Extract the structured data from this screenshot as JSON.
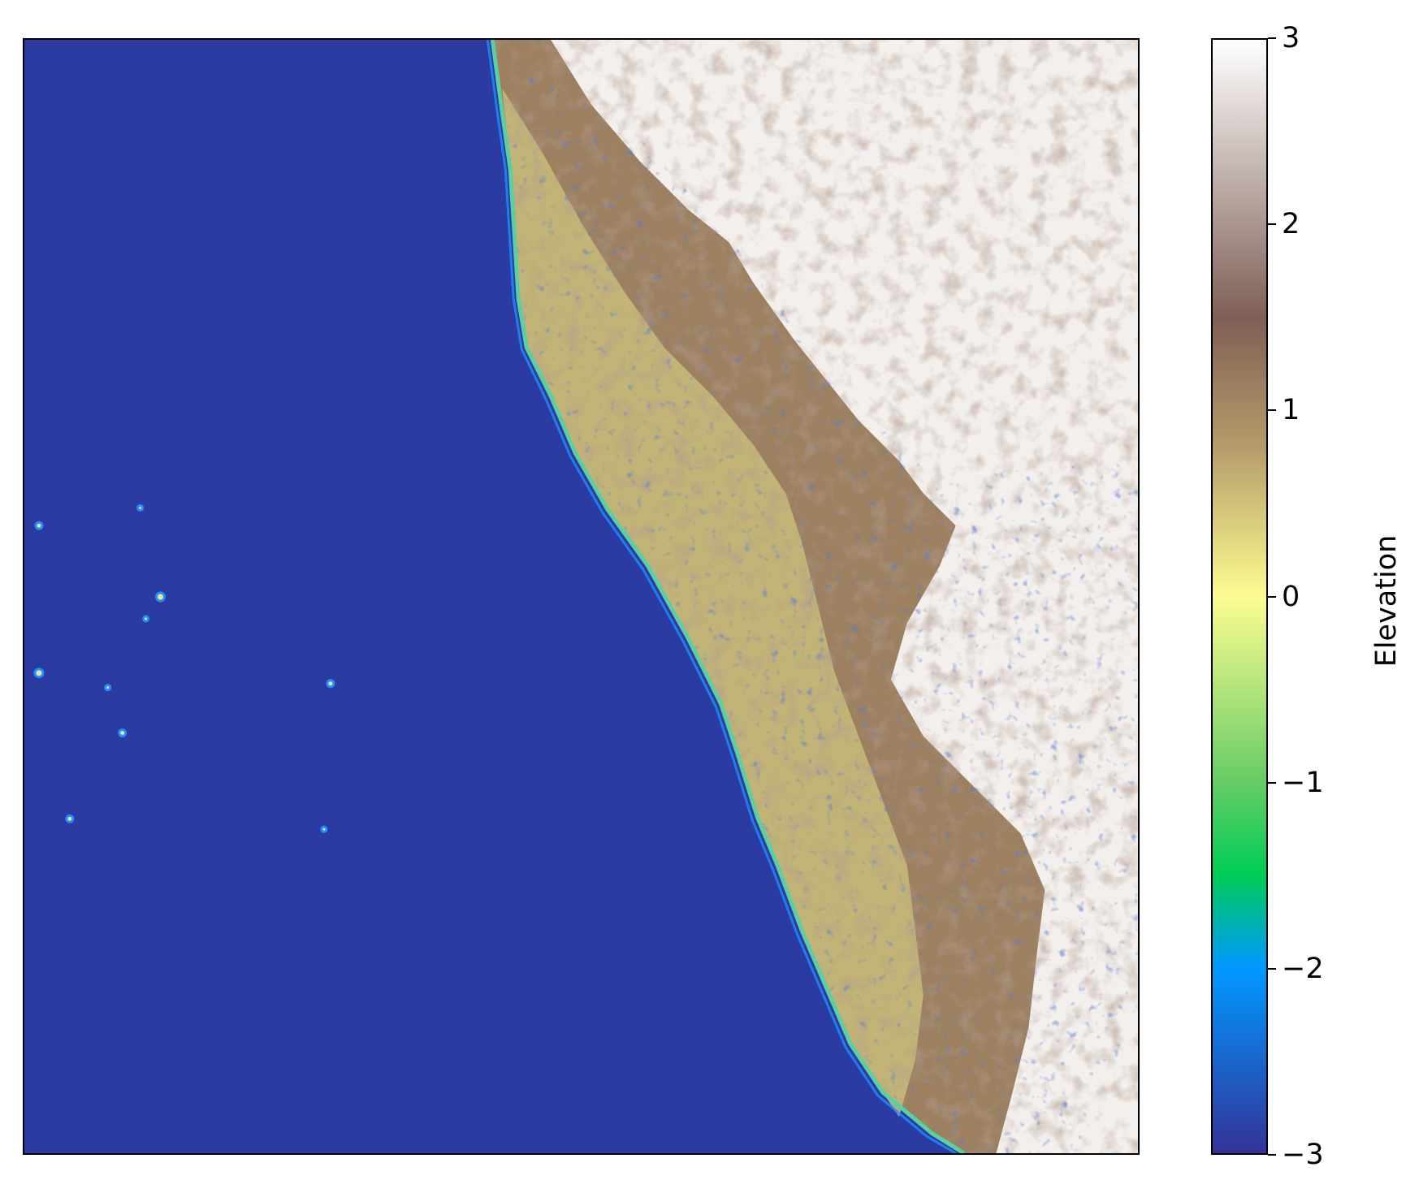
{
  "map": {
    "colormap": "terrain",
    "value_range": [
      -3,
      3
    ],
    "colors": {
      "ocean": "#2b3ba1",
      "coast_cyan": "#1e90ff",
      "green": "#2ecc71",
      "yellow": "#f2e48a",
      "tan": "#b89c66",
      "brown": "#7d5a4a",
      "white": "#f8f6f4"
    }
  },
  "colorbar": {
    "label": "Elevation",
    "ticks": [
      {
        "value": 3,
        "label": "3"
      },
      {
        "value": 2,
        "label": "2"
      },
      {
        "value": 1,
        "label": "1"
      },
      {
        "value": 0,
        "label": "0"
      },
      {
        "value": -1,
        "label": "−1"
      },
      {
        "value": -2,
        "label": "−2"
      },
      {
        "value": -3,
        "label": "−3"
      }
    ],
    "gradient_stops": [
      {
        "value": 3,
        "color": "#ffffff"
      },
      {
        "value": 1.5,
        "color": "#7f5f55"
      },
      {
        "value": 0.8,
        "color": "#b59d6a"
      },
      {
        "value": 0,
        "color": "#fdfc91"
      },
      {
        "value": -1,
        "color": "#66cc66"
      },
      {
        "value": -1.5,
        "color": "#00cc55"
      },
      {
        "value": -2,
        "color": "#0099ff"
      },
      {
        "value": -3,
        "color": "#333399"
      }
    ]
  }
}
